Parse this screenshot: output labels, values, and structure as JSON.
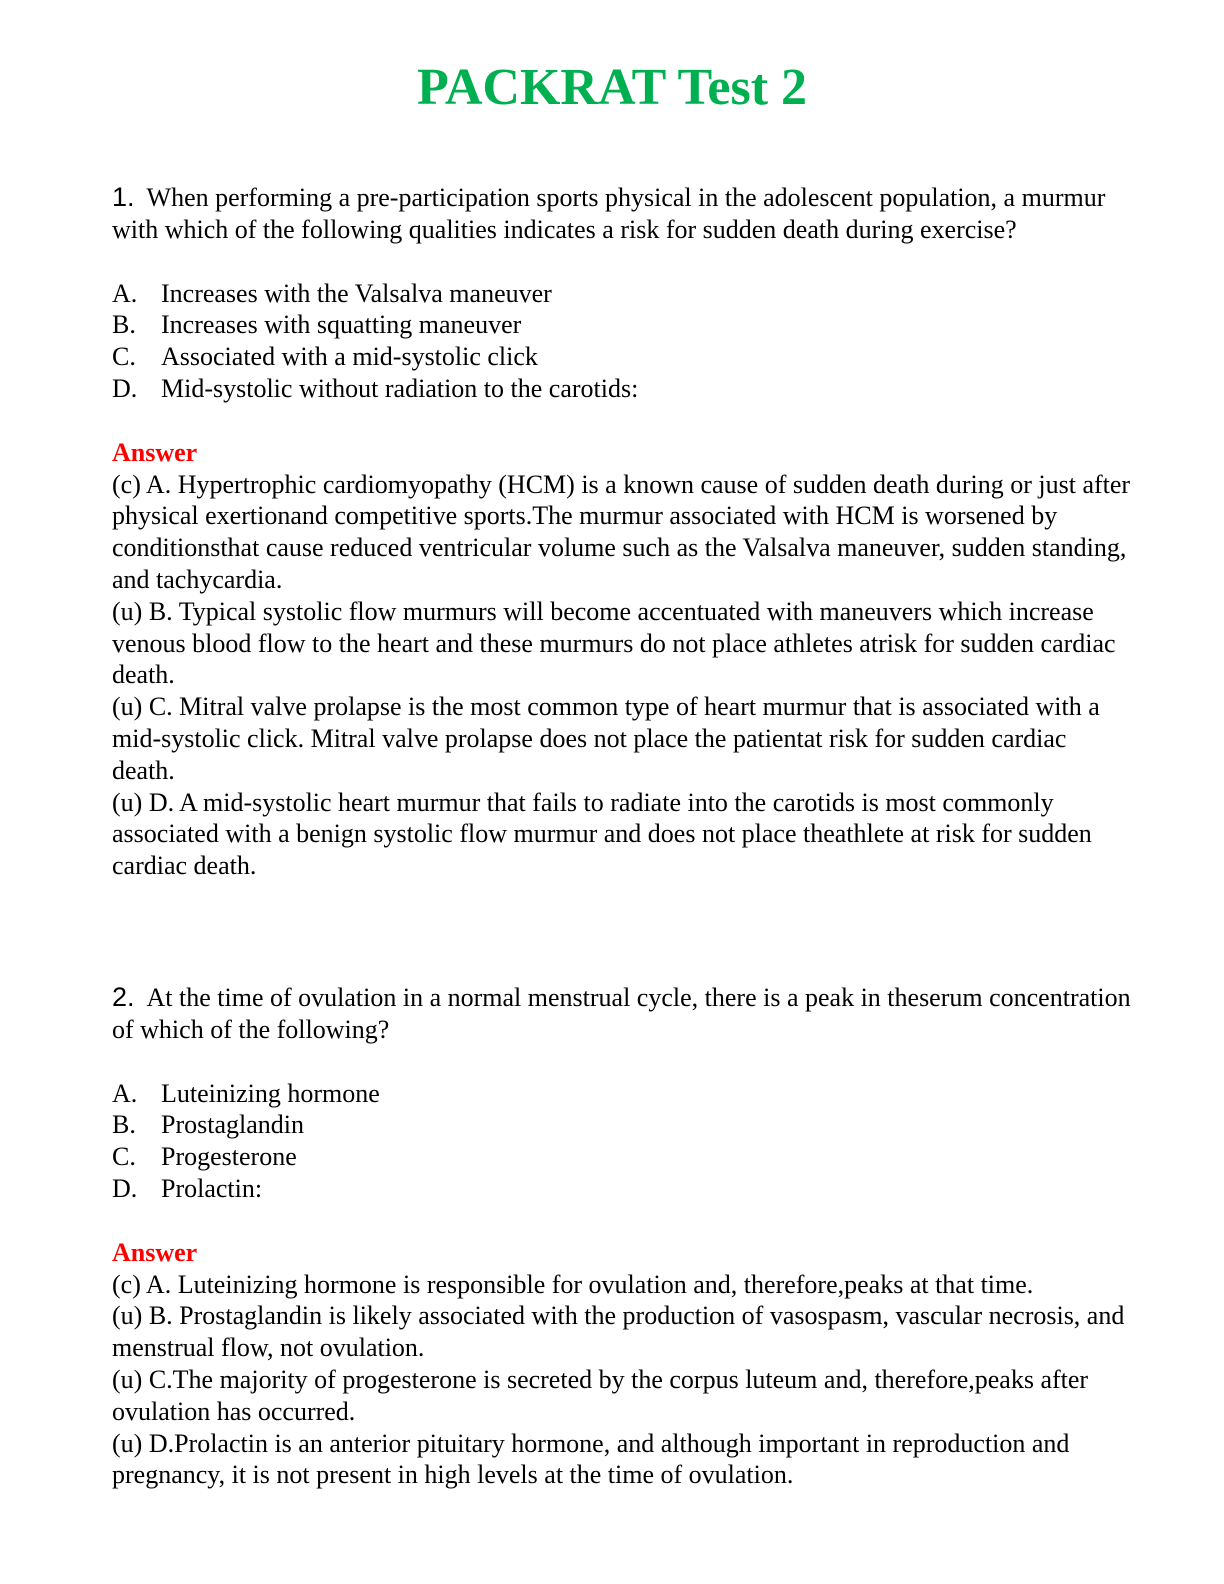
{
  "title": "PACKRAT Test 2",
  "questions": [
    {
      "number": "1.",
      "text": "When performing a pre-participation sports physical in the adolescent population, a murmur with which of the following qualities indicates a risk for sudden death during exercise?",
      "options": [
        {
          "letter": "A.",
          "text": "Increases with the Valsalva maneuver"
        },
        {
          "letter": "B.",
          "text": "Increases with squatting maneuver"
        },
        {
          "letter": "C.",
          "text": "Associated with a mid-systolic click"
        },
        {
          "letter": "D.",
          "text": "Mid-systolic without radiation to the carotids:"
        }
      ],
      "answer_label": "Answer",
      "explanations": [
        "(c) A. Hypertrophic cardiomyopathy (HCM) is a known cause of sudden death during or just after physical exertionand competitive sports.The murmur associated with HCM is worsened by conditionsthat cause reduced ventricular volume such as the Valsalva maneuver, sudden standing, and tachycardia.",
        "(u) B. Typical systolic flow murmurs will become accentuated with maneuvers which increase venous blood flow to the heart and these murmurs do not place athletes atrisk for sudden cardiac death.",
        "(u) C. Mitral valve prolapse is the most common type of heart murmur that is associated with a mid-systolic click. Mitral valve prolapse does not place the patientat risk for sudden cardiac death.",
        "(u) D. A mid-systolic heart murmur that fails to radiate into the carotids is most commonly associated with a benign systolic flow murmur and does not place theathlete at risk for sudden cardiac death."
      ]
    },
    {
      "number": "2.",
      "text": "At the time of ovulation in a normal menstrual cycle, there is a peak in theserum concentration of which of the following?",
      "options": [
        {
          "letter": "A.",
          "text": "Luteinizing hormone"
        },
        {
          "letter": "B.",
          "text": "Prostaglandin"
        },
        {
          "letter": "C.",
          "text": "Progesterone"
        },
        {
          "letter": "D.",
          "text": "Prolactin:"
        }
      ],
      "answer_label": "Answer",
      "explanations": [
        "(c) A. Luteinizing hormone is responsible for ovulation and, therefore,peaks at that time.",
        "(u) B. Prostaglandin is likely associated with the production of vasospasm, vascular necrosis, and menstrual flow, not ovulation.",
        "(u) C.The majority of progesterone is secreted by the corpus luteum and, therefore,peaks after ovulation has occurred.",
        "(u) D.Prolactin is an anterior pituitary hormone, and although important in reproduction and pregnancy, it is not present in high levels at the time of ovulation."
      ]
    }
  ],
  "colors": {
    "title": "#00b050",
    "answer_label": "#ff0000"
  }
}
